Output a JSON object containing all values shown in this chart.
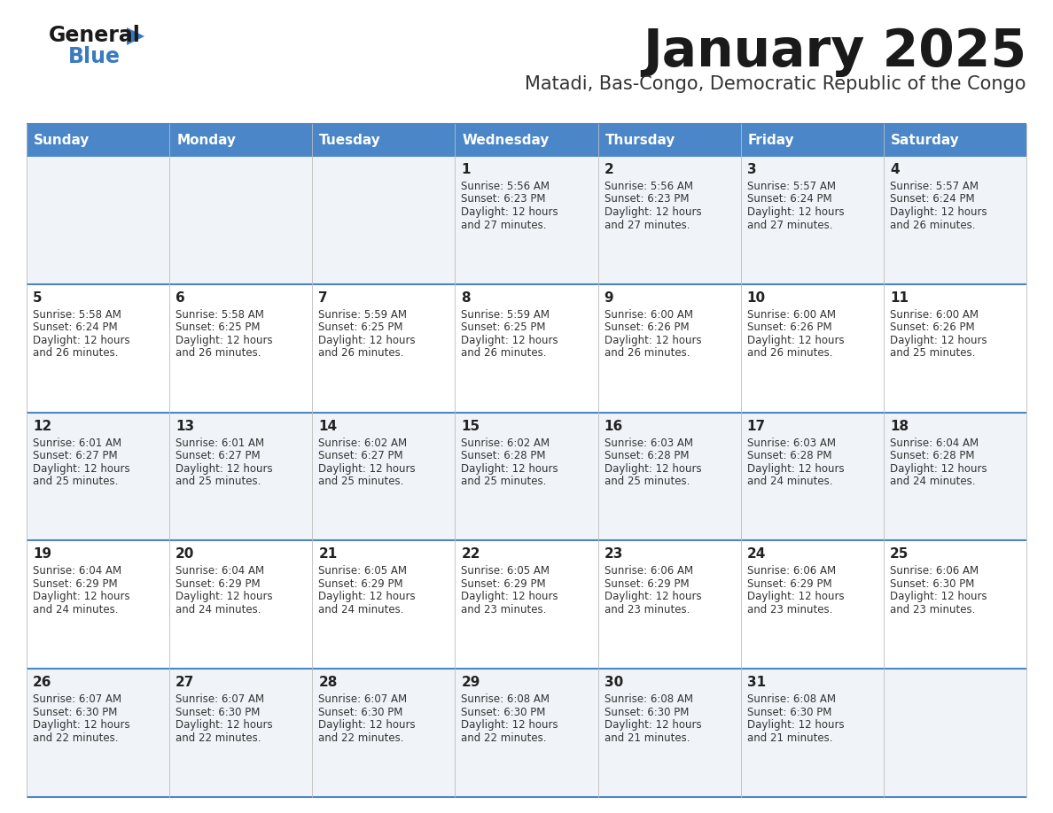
{
  "title": "January 2025",
  "subtitle": "Matadi, Bas-Congo, Democratic Republic of the Congo",
  "header_bg_color": "#4a86c8",
  "header_text_color": "#ffffff",
  "cell_bg_even": "#f0f4f8",
  "cell_bg_odd": "#ffffff",
  "title_color": "#1a1a1a",
  "subtitle_color": "#333333",
  "day_number_color": "#222222",
  "cell_text_color": "#333333",
  "divider_color": "#4a86c8",
  "logo_text_color": "#1a1a1a",
  "logo_blue_color": "#3a7abf",
  "days_of_week": [
    "Sunday",
    "Monday",
    "Tuesday",
    "Wednesday",
    "Thursday",
    "Friday",
    "Saturday"
  ],
  "weeks": [
    [
      {
        "day": "",
        "sunrise": "",
        "sunset": "",
        "daylight_hours": "",
        "daylight_mins": ""
      },
      {
        "day": "",
        "sunrise": "",
        "sunset": "",
        "daylight_hours": "",
        "daylight_mins": ""
      },
      {
        "day": "",
        "sunrise": "",
        "sunset": "",
        "daylight_hours": "",
        "daylight_mins": ""
      },
      {
        "day": "1",
        "sunrise": "5:56 AM",
        "sunset": "6:23 PM",
        "daylight_hours": "12 hours",
        "daylight_mins": "and 27 minutes."
      },
      {
        "day": "2",
        "sunrise": "5:56 AM",
        "sunset": "6:23 PM",
        "daylight_hours": "12 hours",
        "daylight_mins": "and 27 minutes."
      },
      {
        "day": "3",
        "sunrise": "5:57 AM",
        "sunset": "6:24 PM",
        "daylight_hours": "12 hours",
        "daylight_mins": "and 27 minutes."
      },
      {
        "day": "4",
        "sunrise": "5:57 AM",
        "sunset": "6:24 PM",
        "daylight_hours": "12 hours",
        "daylight_mins": "and 26 minutes."
      }
    ],
    [
      {
        "day": "5",
        "sunrise": "5:58 AM",
        "sunset": "6:24 PM",
        "daylight_hours": "12 hours",
        "daylight_mins": "and 26 minutes."
      },
      {
        "day": "6",
        "sunrise": "5:58 AM",
        "sunset": "6:25 PM",
        "daylight_hours": "12 hours",
        "daylight_mins": "and 26 minutes."
      },
      {
        "day": "7",
        "sunrise": "5:59 AM",
        "sunset": "6:25 PM",
        "daylight_hours": "12 hours",
        "daylight_mins": "and 26 minutes."
      },
      {
        "day": "8",
        "sunrise": "5:59 AM",
        "sunset": "6:25 PM",
        "daylight_hours": "12 hours",
        "daylight_mins": "and 26 minutes."
      },
      {
        "day": "9",
        "sunrise": "6:00 AM",
        "sunset": "6:26 PM",
        "daylight_hours": "12 hours",
        "daylight_mins": "and 26 minutes."
      },
      {
        "day": "10",
        "sunrise": "6:00 AM",
        "sunset": "6:26 PM",
        "daylight_hours": "12 hours",
        "daylight_mins": "and 26 minutes."
      },
      {
        "day": "11",
        "sunrise": "6:00 AM",
        "sunset": "6:26 PM",
        "daylight_hours": "12 hours",
        "daylight_mins": "and 25 minutes."
      }
    ],
    [
      {
        "day": "12",
        "sunrise": "6:01 AM",
        "sunset": "6:27 PM",
        "daylight_hours": "12 hours",
        "daylight_mins": "and 25 minutes."
      },
      {
        "day": "13",
        "sunrise": "6:01 AM",
        "sunset": "6:27 PM",
        "daylight_hours": "12 hours",
        "daylight_mins": "and 25 minutes."
      },
      {
        "day": "14",
        "sunrise": "6:02 AM",
        "sunset": "6:27 PM",
        "daylight_hours": "12 hours",
        "daylight_mins": "and 25 minutes."
      },
      {
        "day": "15",
        "sunrise": "6:02 AM",
        "sunset": "6:28 PM",
        "daylight_hours": "12 hours",
        "daylight_mins": "and 25 minutes."
      },
      {
        "day": "16",
        "sunrise": "6:03 AM",
        "sunset": "6:28 PM",
        "daylight_hours": "12 hours",
        "daylight_mins": "and 25 minutes."
      },
      {
        "day": "17",
        "sunrise": "6:03 AM",
        "sunset": "6:28 PM",
        "daylight_hours": "12 hours",
        "daylight_mins": "and 24 minutes."
      },
      {
        "day": "18",
        "sunrise": "6:04 AM",
        "sunset": "6:28 PM",
        "daylight_hours": "12 hours",
        "daylight_mins": "and 24 minutes."
      }
    ],
    [
      {
        "day": "19",
        "sunrise": "6:04 AM",
        "sunset": "6:29 PM",
        "daylight_hours": "12 hours",
        "daylight_mins": "and 24 minutes."
      },
      {
        "day": "20",
        "sunrise": "6:04 AM",
        "sunset": "6:29 PM",
        "daylight_hours": "12 hours",
        "daylight_mins": "and 24 minutes."
      },
      {
        "day": "21",
        "sunrise": "6:05 AM",
        "sunset": "6:29 PM",
        "daylight_hours": "12 hours",
        "daylight_mins": "and 24 minutes."
      },
      {
        "day": "22",
        "sunrise": "6:05 AM",
        "sunset": "6:29 PM",
        "daylight_hours": "12 hours",
        "daylight_mins": "and 23 minutes."
      },
      {
        "day": "23",
        "sunrise": "6:06 AM",
        "sunset": "6:29 PM",
        "daylight_hours": "12 hours",
        "daylight_mins": "and 23 minutes."
      },
      {
        "day": "24",
        "sunrise": "6:06 AM",
        "sunset": "6:29 PM",
        "daylight_hours": "12 hours",
        "daylight_mins": "and 23 minutes."
      },
      {
        "day": "25",
        "sunrise": "6:06 AM",
        "sunset": "6:30 PM",
        "daylight_hours": "12 hours",
        "daylight_mins": "and 23 minutes."
      }
    ],
    [
      {
        "day": "26",
        "sunrise": "6:07 AM",
        "sunset": "6:30 PM",
        "daylight_hours": "12 hours",
        "daylight_mins": "and 22 minutes."
      },
      {
        "day": "27",
        "sunrise": "6:07 AM",
        "sunset": "6:30 PM",
        "daylight_hours": "12 hours",
        "daylight_mins": "and 22 minutes."
      },
      {
        "day": "28",
        "sunrise": "6:07 AM",
        "sunset": "6:30 PM",
        "daylight_hours": "12 hours",
        "daylight_mins": "and 22 minutes."
      },
      {
        "day": "29",
        "sunrise": "6:08 AM",
        "sunset": "6:30 PM",
        "daylight_hours": "12 hours",
        "daylight_mins": "and 22 minutes."
      },
      {
        "day": "30",
        "sunrise": "6:08 AM",
        "sunset": "6:30 PM",
        "daylight_hours": "12 hours",
        "daylight_mins": "and 21 minutes."
      },
      {
        "day": "31",
        "sunrise": "6:08 AM",
        "sunset": "6:30 PM",
        "daylight_hours": "12 hours",
        "daylight_mins": "and 21 minutes."
      },
      {
        "day": "",
        "sunrise": "",
        "sunset": "",
        "daylight_hours": "",
        "daylight_mins": ""
      }
    ]
  ]
}
